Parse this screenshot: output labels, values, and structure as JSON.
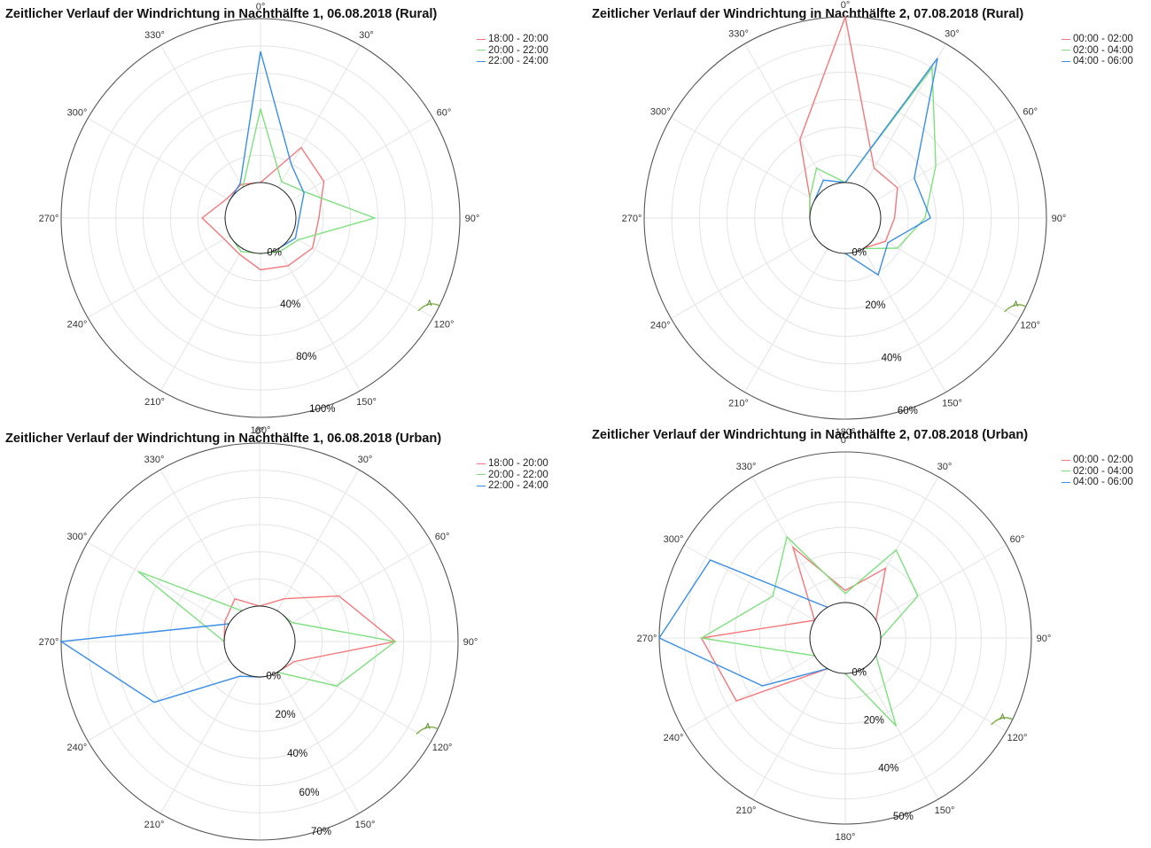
{
  "colors": {
    "series1": "#f4787a",
    "series2": "#7ee07e",
    "series3": "#3a8ee8",
    "series2_strong": "#2ad27a",
    "axis": "#555555",
    "grid": "#e4e4e4"
  },
  "chart_data": [
    {
      "type": "polar-line",
      "title": "Zeitlicher Verlauf der Windrichtung in Nachthälfte 1, 06.08.2018 (Rural)",
      "theta_labels": [
        "0°",
        "30°",
        "60°",
        "90°",
        "120°",
        "150°",
        "180°",
        "210°",
        "240°",
        "270°",
        "300°",
        "330°"
      ],
      "radial_labels": [
        "0%",
        "40%",
        "80%",
        "100%"
      ],
      "r_max": 100,
      "legend_position": "top-right",
      "series": [
        {
          "name": "18:00 - 20:00",
          "theta": [
            0,
            30,
            60,
            90,
            120,
            150,
            180,
            210,
            240,
            270,
            300,
            330
          ],
          "values": [
            0,
            28,
            23,
            14,
            15,
            12,
            10,
            4,
            4,
            14,
            2,
            2
          ]
        },
        {
          "name": "20:00 - 22:00",
          "theta": [
            0,
            30,
            60,
            90,
            120,
            150,
            180,
            210,
            240,
            270,
            300,
            330
          ],
          "values": [
            45,
            4,
            10,
            48,
            5,
            2,
            0,
            2,
            0,
            0,
            0,
            0
          ]
        },
        {
          "name": "22:00 - 24:00",
          "theta": [
            0,
            30,
            60,
            90,
            120,
            150,
            180,
            210,
            240,
            270,
            300,
            330
          ],
          "values": [
            80,
            16,
            9,
            2,
            3,
            0,
            0,
            0,
            0,
            0,
            0,
            3
          ]
        }
      ]
    },
    {
      "type": "polar-line",
      "title": "Zeitlicher Verlauf der Windrichtung in Nachthälfte 2, 07.08.2018 (Rural)",
      "theta_labels": [
        "0°",
        "30°",
        "60°",
        "90°",
        "120°",
        "150°",
        "180°",
        "210°",
        "240°",
        "270°",
        "300°",
        "330°"
      ],
      "radial_labels": [
        "0%",
        "20%",
        "40%",
        "60%"
      ],
      "r_max": 60,
      "legend_position": "top-right",
      "series": [
        {
          "name": "00:00 - 02:00",
          "theta": [
            0,
            30,
            60,
            90,
            120,
            150,
            180,
            210,
            240,
            270,
            300,
            330
          ],
          "values": [
            60,
            8,
            9,
            5,
            4,
            0,
            0,
            0,
            0,
            0,
            2,
            20
          ]
        },
        {
          "name": "02:00 - 04:00",
          "theta": [
            0,
            30,
            60,
            90,
            120,
            150,
            180,
            210,
            240,
            270,
            300,
            330
          ],
          "values": [
            0,
            50,
            25,
            16,
            9,
            0,
            0,
            0,
            0,
            0,
            2,
            8
          ]
        },
        {
          "name": "04:00 - 06:00",
          "theta": [
            0,
            30,
            60,
            90,
            120,
            150,
            180,
            210,
            240,
            270,
            300,
            330
          ],
          "values": [
            0,
            54,
            16,
            18,
            5,
            11,
            0,
            0,
            0,
            0,
            0,
            3
          ]
        }
      ]
    },
    {
      "type": "polar-line",
      "title": "Zeitlicher Verlauf der Windrichtung in Nachthälfte 1, 06.08.2018 (Urban)",
      "theta_labels": [
        "0°",
        "30°",
        "60°",
        "90°",
        "120°",
        "150°",
        "180°",
        "210°",
        "240°",
        "270°",
        "300°",
        "330°"
      ],
      "radial_labels": [
        "0%",
        "20%",
        "40%",
        "60%",
        "70%"
      ],
      "r_max": 70,
      "legend_position": "top-right",
      "series": [
        {
          "name": "18:00 - 20:00",
          "theta": [
            0,
            30,
            60,
            90,
            120,
            150,
            180,
            210,
            240,
            270,
            300,
            330
          ],
          "values": [
            0,
            6,
            24,
            43,
            2,
            0,
            0,
            0,
            0,
            0,
            2,
            6
          ]
        },
        {
          "name": "20:00 - 22:00",
          "theta": [
            0,
            30,
            60,
            90,
            120,
            150,
            180,
            210,
            240,
            270,
            300,
            330
          ],
          "values": [
            0,
            0,
            1,
            43,
            23,
            0,
            0,
            0,
            0,
            0,
            45,
            0
          ]
        },
        {
          "name": "22:00 - 24:00",
          "theta": [
            0,
            30,
            60,
            90,
            120,
            150,
            180,
            210,
            240,
            270,
            300,
            330
          ],
          "values": [
            0,
            0,
            0,
            0,
            0,
            0,
            0,
            2,
            37,
            70,
            0,
            0
          ]
        }
      ]
    },
    {
      "type": "polar-line",
      "title": "Zeitlicher Verlauf der Windrichtung in Nachthälfte 2, 07.08.2018 (Urban)",
      "theta_labels": [
        "0°",
        "30°",
        "60°",
        "90°",
        "120°",
        "150°",
        "180°",
        "210°",
        "240°",
        "270°",
        "300°",
        "330°"
      ],
      "radial_labels": [
        "0%",
        "20%",
        "40%",
        "50%"
      ],
      "r_max": 50,
      "legend_position": "top-right",
      "series": [
        {
          "name": "00:00 - 02:00",
          "theta": [
            0,
            30,
            60,
            90,
            120,
            150,
            180,
            210,
            240,
            270,
            300,
            330
          ],
          "values": [
            4,
            15,
            0,
            0,
            0,
            0,
            0,
            0,
            30,
            36,
            0,
            23
          ]
        },
        {
          "name": "02:00 - 04:00",
          "theta": [
            0,
            30,
            60,
            90,
            120,
            150,
            180,
            210,
            240,
            270,
            300,
            330
          ],
          "values": [
            3,
            22,
            16,
            0,
            0,
            22,
            0,
            0,
            0,
            36,
            16,
            27
          ]
        },
        {
          "name": "04:00 - 06:00",
          "theta": [
            0,
            30,
            60,
            90,
            120,
            150,
            180,
            210,
            240,
            270,
            300,
            330
          ],
          "values": [
            0,
            0,
            0,
            0,
            0,
            0,
            0,
            0,
            20,
            50,
            40,
            0
          ]
        }
      ]
    }
  ]
}
